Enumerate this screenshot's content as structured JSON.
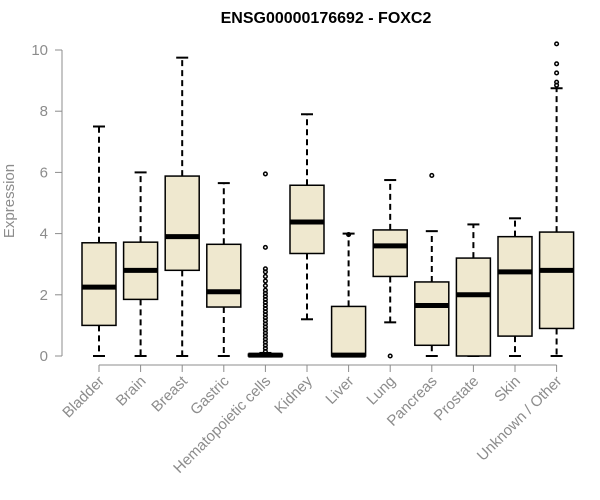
{
  "chart_data": {
    "type": "boxplot",
    "title": "ENSG00000176692 - FOXC2",
    "xlabel": "",
    "ylabel": "Expression",
    "ylim": [
      0,
      10.3
    ],
    "yticks": [
      0,
      2,
      4,
      6,
      8,
      10
    ],
    "box_fill": "#efe8cf",
    "categories": [
      "Bladder",
      "Brain",
      "Breast",
      "Gastric",
      "Hematopoietic cells",
      "Kidney",
      "Liver",
      "Lung",
      "Pancreas",
      "Prostate",
      "Skin",
      "Unknown / Other"
    ],
    "boxes": [
      {
        "name": "Bladder",
        "whisker_low": 0,
        "q1": 1.0,
        "median": 2.25,
        "q3": 3.7,
        "whisker_high": 7.5,
        "outliers": []
      },
      {
        "name": "Brain",
        "whisker_low": 0,
        "q1": 1.85,
        "median": 2.8,
        "q3": 3.72,
        "whisker_high": 6.0,
        "outliers": []
      },
      {
        "name": "Breast",
        "whisker_low": 0,
        "q1": 2.8,
        "median": 3.9,
        "q3": 5.88,
        "whisker_high": 9.75,
        "outliers": []
      },
      {
        "name": "Gastric",
        "whisker_low": 0,
        "q1": 1.6,
        "median": 2.1,
        "q3": 3.65,
        "whisker_high": 5.65,
        "outliers": []
      },
      {
        "name": "Hematopoietic cells",
        "whisker_low": 0,
        "q1": 0,
        "median": 0.03,
        "q3": 0.06,
        "whisker_high": 0.1,
        "outliers": [
          0.15,
          0.25,
          0.35,
          0.45,
          0.55,
          0.65,
          0.75,
          0.85,
          0.95,
          1.05,
          1.15,
          1.25,
          1.35,
          1.45,
          1.55,
          1.65,
          1.75,
          1.85,
          1.95,
          2.05,
          2.15,
          2.3,
          2.45,
          2.6,
          2.75,
          2.85,
          3.55,
          5.95
        ]
      },
      {
        "name": "Kidney",
        "whisker_low": 1.2,
        "q1": 3.35,
        "median": 4.38,
        "q3": 5.58,
        "whisker_high": 7.9,
        "outliers": []
      },
      {
        "name": "Liver",
        "whisker_low": 0,
        "q1": 0,
        "median": 0.03,
        "q3": 1.62,
        "whisker_high": 4.0,
        "outliers": [
          3.97
        ]
      },
      {
        "name": "Lung",
        "whisker_low": 1.1,
        "q1": 2.6,
        "median": 3.6,
        "q3": 4.12,
        "whisker_high": 5.75,
        "outliers": [
          0
        ]
      },
      {
        "name": "Pancreas",
        "whisker_low": 0,
        "q1": 0.35,
        "median": 1.65,
        "q3": 2.42,
        "whisker_high": 4.08,
        "outliers": [
          5.9
        ]
      },
      {
        "name": "Prostate",
        "whisker_low": 0,
        "q1": 0,
        "median": 2.0,
        "q3": 3.2,
        "whisker_high": 4.3,
        "outliers": []
      },
      {
        "name": "Skin",
        "whisker_low": 0,
        "q1": 0.65,
        "median": 2.75,
        "q3": 3.9,
        "whisker_high": 4.5,
        "outliers": []
      },
      {
        "name": "Unknown / Other",
        "whisker_low": 0,
        "q1": 0.9,
        "median": 2.8,
        "q3": 4.05,
        "whisker_high": 8.75,
        "outliers": [
          8.85,
          8.95,
          9.25,
          9.55,
          10.2
        ]
      }
    ]
  }
}
